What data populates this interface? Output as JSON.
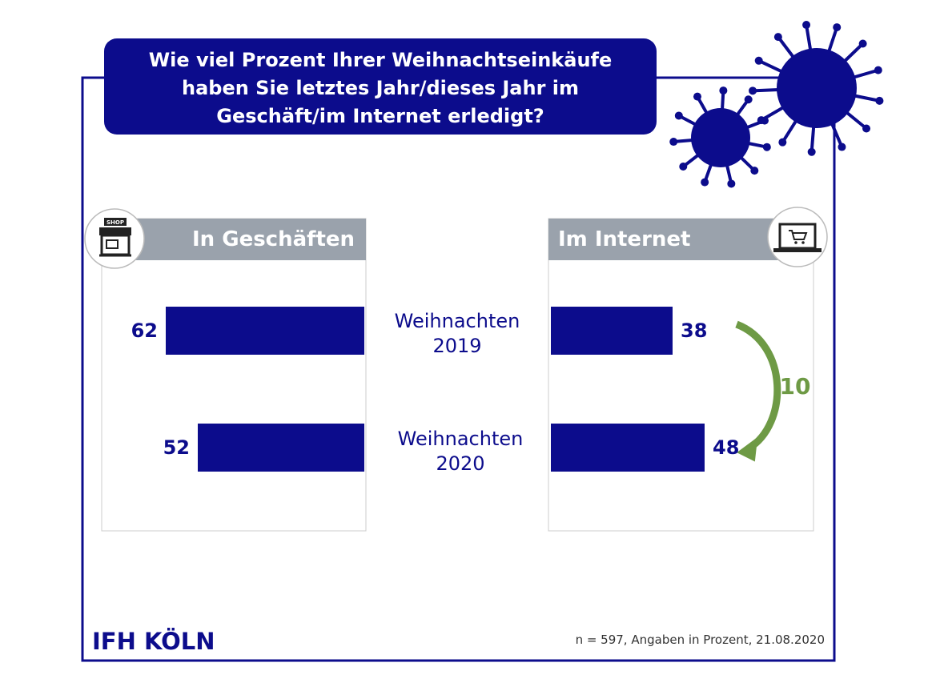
{
  "chart_data": {
    "type": "bar",
    "title": "Wie viel Prozent Ihrer Weihnachtseinkäufe haben Sie letztes Jahr/dieses Jahr im Geschäft/im Internet erledigt?",
    "categories": [
      "Weihnachten 2019",
      "Weihnachten 2020"
    ],
    "series": [
      {
        "name": "In Geschäften",
        "color": "#0c0c8c",
        "values": [
          62,
          52
        ]
      },
      {
        "name": "Im Internet",
        "color": "#0c0c8c",
        "values": [
          38,
          48
        ]
      }
    ],
    "annotation": "10",
    "icon_label": "SHOP",
    "brand": "IFH KÖLN",
    "footnote": "n = 597, Angaben in Prozent, 21.08.2020"
  }
}
